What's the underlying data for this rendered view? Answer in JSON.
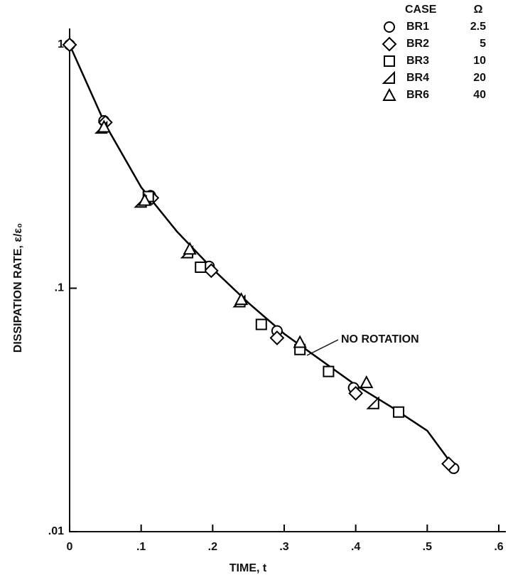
{
  "chart_data": {
    "type": "scatter",
    "xlabel": "TIME, t",
    "ylabel": "DISSIPATION RATE, ε/ε₀",
    "log_y": true,
    "xlim": [
      0,
      0.6
    ],
    "ylim": [
      0.01,
      1
    ],
    "xticks": [
      0,
      {
        "value": 0.1,
        "label": ".1"
      },
      {
        "value": 0.2,
        "label": ".2"
      },
      {
        "value": 0.3,
        "label": ".3"
      },
      {
        "value": 0.4,
        "label": ".4"
      },
      {
        "value": 0.5,
        "label": ".5"
      },
      {
        "value": 0.6,
        "label": ".6"
      }
    ],
    "yticks": [
      {
        "value": 0.01,
        "label": ".01"
      },
      {
        "value": 0.1,
        "label": ".1"
      },
      1
    ],
    "legend_headers": [
      "CASE",
      "Ω"
    ],
    "legend": "upper right",
    "color": "#000000",
    "curve": {
      "name": "NO ROTATION",
      "x": [
        0,
        0.05,
        0.1,
        0.15,
        0.2,
        0.25,
        0.3,
        0.35,
        0.4,
        0.45,
        0.5,
        0.54
      ],
      "values": [
        1,
        0.47,
        0.26,
        0.171,
        0.12,
        0.087,
        0.065,
        0.051,
        0.04,
        0.0325,
        0.026,
        0.018
      ]
    },
    "series": [
      {
        "name": "BR1",
        "omega": 2.5,
        "marker": "circle",
        "x": [
          0,
          0.048,
          0.113,
          0.195,
          0.29,
          0.397,
          0.537
        ],
        "values": [
          1,
          0.487,
          0.24,
          0.123,
          0.0668,
          0.039,
          0.0182
        ]
      },
      {
        "name": "BR2",
        "omega": 5,
        "marker": "diamond",
        "x": [
          0,
          0.05,
          0.115,
          0.198,
          0.29,
          0.4,
          0.53
        ],
        "values": [
          1,
          0.48,
          0.235,
          0.118,
          0.0625,
          0.037,
          0.019
        ]
      },
      {
        "name": "BR3",
        "omega": 10,
        "marker": "square",
        "x": [
          0.11,
          0.183,
          0.268,
          0.322,
          0.362,
          0.46
        ],
        "values": [
          0.238,
          0.122,
          0.071,
          0.056,
          0.0455,
          0.031
        ]
      },
      {
        "name": "BR4",
        "omega": 20,
        "marker": "half-triangle",
        "x": [
          0.045,
          0.1,
          0.165,
          0.238,
          0.425
        ],
        "values": [
          0.455,
          0.226,
          0.14,
          0.088,
          0.0336
        ]
      },
      {
        "name": "BR6",
        "omega": 40,
        "marker": "triangle",
        "x": [
          0.048,
          0.105,
          0.168,
          0.24,
          0.322,
          0.415
        ],
        "values": [
          0.46,
          0.23,
          0.145,
          0.09,
          0.06,
          0.041
        ]
      }
    ]
  }
}
